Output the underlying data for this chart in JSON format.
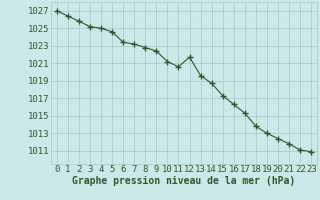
{
  "x": [
    0,
    1,
    2,
    3,
    4,
    5,
    6,
    7,
    8,
    9,
    10,
    11,
    12,
    13,
    14,
    15,
    16,
    17,
    18,
    19,
    20,
    21,
    22,
    23
  ],
  "y": [
    1027.0,
    1026.4,
    1025.8,
    1025.2,
    1025.0,
    1024.6,
    1023.4,
    1023.2,
    1022.8,
    1022.4,
    1021.2,
    1020.6,
    1021.7,
    1019.6,
    1018.7,
    1017.3,
    1016.3,
    1015.3,
    1013.8,
    1013.0,
    1012.4,
    1011.8,
    1011.1,
    1010.9
  ],
  "line_color": "#2d5a27",
  "marker": "+",
  "marker_size": 4,
  "marker_linewidth": 1.0,
  "line_width": 0.8,
  "background_color": "#cce8e8",
  "grid_color": "#aac8c8",
  "ylabel_ticks": [
    1011,
    1013,
    1015,
    1017,
    1019,
    1021,
    1023,
    1025,
    1027
  ],
  "xlabel": "Graphe pression niveau de la mer (hPa)",
  "ylim": [
    1009.5,
    1028.0
  ],
  "xlim": [
    -0.5,
    23.5
  ],
  "label_fontsize": 7,
  "tick_fontsize": 6.5
}
